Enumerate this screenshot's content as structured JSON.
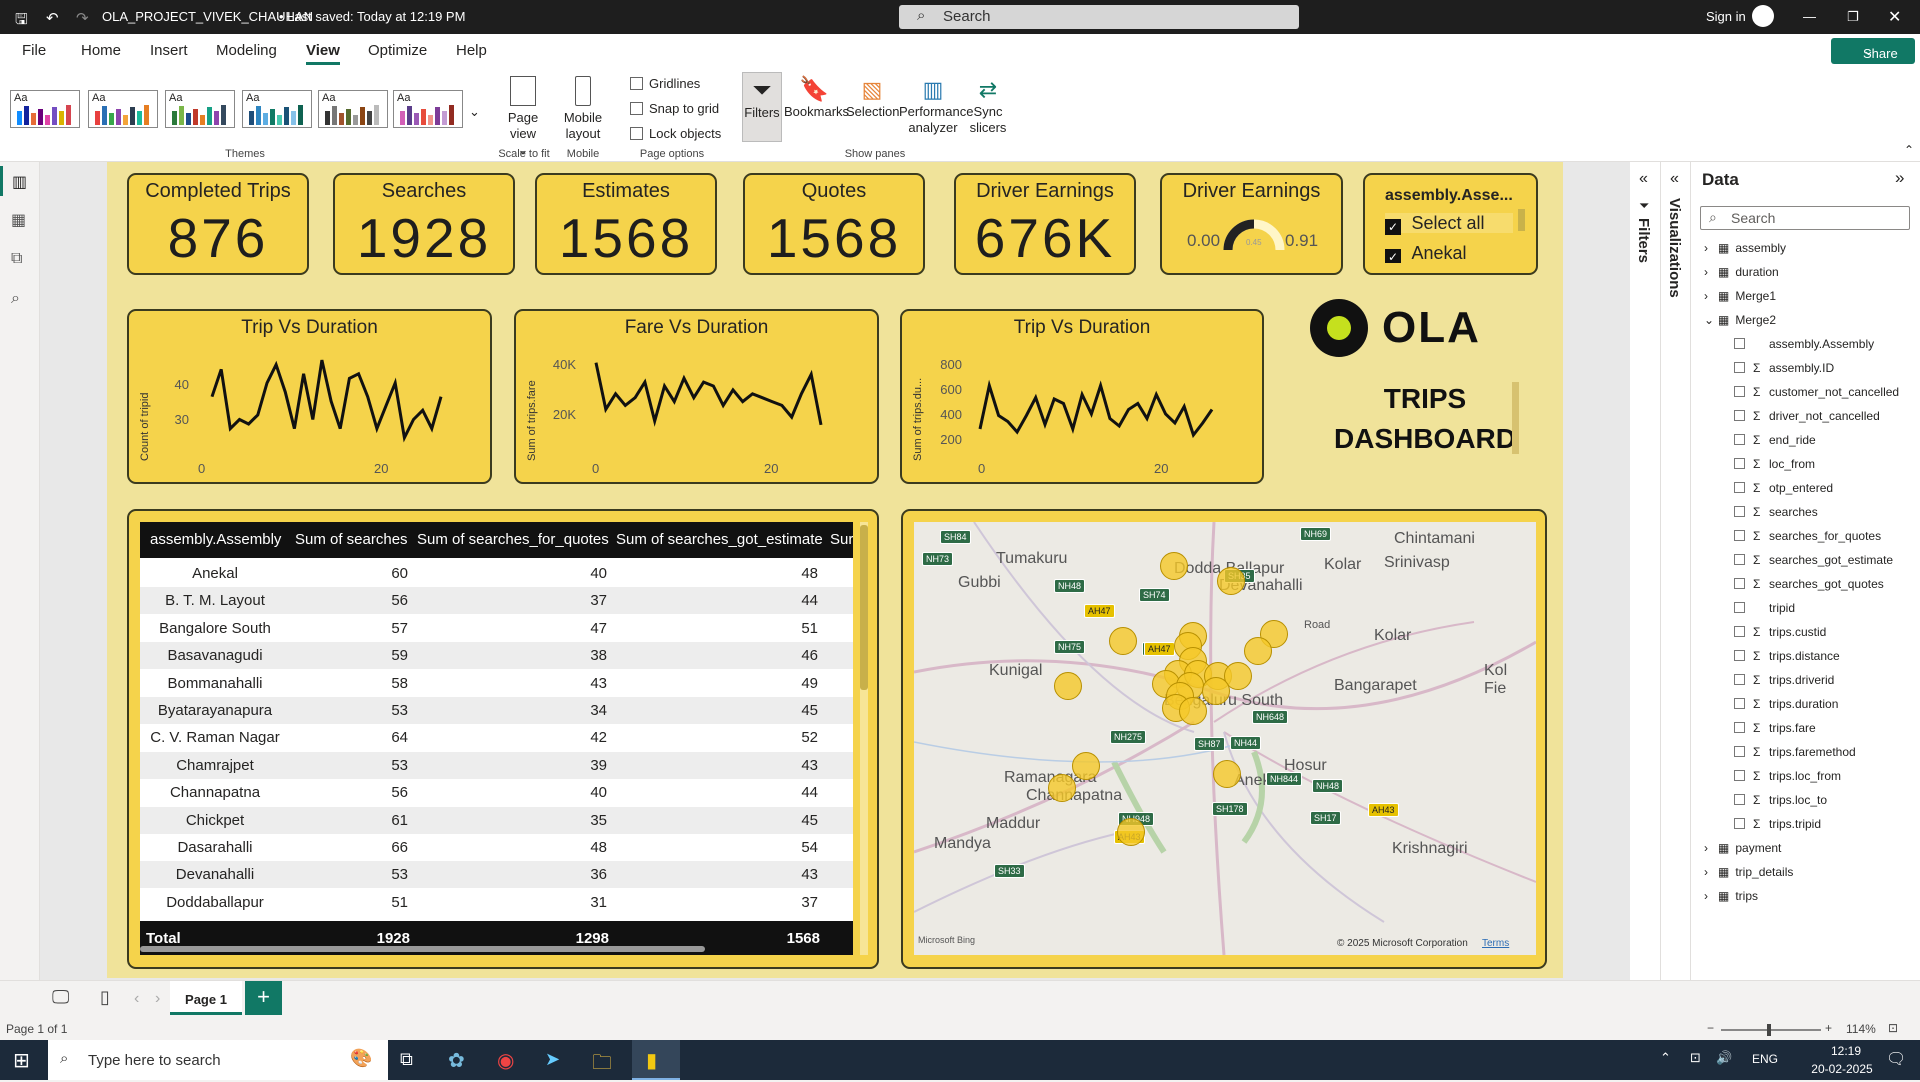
{
  "window": {
    "title": "OLA_PROJECT_VIVEK_CHAUHAN",
    "saved": "• Last saved: Today at 12:19 PM",
    "search": "Search",
    "signin": "Sign in",
    "share": "Share"
  },
  "menu": [
    "File",
    "Home",
    "Insert",
    "Modeling",
    "View",
    "Optimize",
    "Help"
  ],
  "ribbon": {
    "themes_label": "Themes",
    "theme_aa": "Aa",
    "page_view": "Page view",
    "scale_label": "Scale to fit",
    "mobile_layout": "Mobile layout",
    "mobile_label": "Mobile",
    "gridlines": "Gridlines",
    "snap": "Snap to grid",
    "lock": "Lock objects",
    "page_options": "Page options",
    "filters": "Filters",
    "bookmarks": "Bookmarks",
    "selection": "Selection",
    "perf": "Performance analyzer",
    "sync": "Sync slicers",
    "show_panes": "Show panes"
  },
  "cards": [
    {
      "title": "Completed Trips",
      "value": "876"
    },
    {
      "title": "Searches",
      "value": "1928"
    },
    {
      "title": "Estimates",
      "value": "1568"
    },
    {
      "title": "Quotes",
      "value": "1568"
    },
    {
      "title": "Driver Earnings",
      "value": "676K"
    }
  ],
  "gauge": {
    "title": "Driver Earnings",
    "min": "0.00",
    "max": "0.91",
    "mid": "0.45",
    "fraction": 0.5
  },
  "slicer": {
    "title": "assembly.Asse...",
    "items": [
      "Select all",
      "Anekal"
    ]
  },
  "charts": [
    {
      "title": "Trip Vs Duration",
      "ylabel": "Count of tripid",
      "yticks": [
        "40",
        "30"
      ],
      "xticks": [
        "0",
        "20"
      ]
    },
    {
      "title": "Fare Vs Duration",
      "ylabel": "Sum of trips.fare",
      "yticks": [
        "40K",
        "20K"
      ],
      "xticks": [
        "0",
        "20"
      ]
    },
    {
      "title": "Trip Vs Duration",
      "ylabel": "Sum of trips.du...",
      "yticks": [
        "800",
        "600",
        "400",
        "200"
      ],
      "xticks": [
        "0",
        "20"
      ]
    }
  ],
  "chart_data": [
    {
      "type": "line",
      "title": "Trip Vs Duration",
      "ylabel": "Count of tripid",
      "xlabel": "",
      "ylim": [
        25,
        48
      ],
      "x": [
        1,
        2,
        3,
        4,
        5,
        6,
        7,
        8,
        9,
        10,
        11,
        12,
        13,
        14,
        15,
        16,
        17,
        18,
        19,
        20,
        21,
        22,
        23,
        24,
        25,
        26
      ],
      "values": [
        38,
        44,
        31,
        33,
        32,
        34,
        41,
        45,
        39,
        31,
        43,
        33,
        46,
        37,
        31,
        42,
        43,
        38,
        31,
        36,
        41,
        29,
        33,
        35,
        31,
        38
      ]
    },
    {
      "type": "line",
      "title": "Fare Vs Duration",
      "ylabel": "Sum of trips.fare",
      "xlabel": "",
      "ylim": [
        15000,
        42000
      ],
      "x": [
        1,
        2,
        3,
        4,
        5,
        6,
        7,
        8,
        9,
        10,
        11,
        12,
        13,
        14,
        15,
        16,
        17,
        18,
        19,
        20,
        21,
        22,
        23,
        24
      ],
      "values": [
        39000,
        27000,
        31000,
        28000,
        30000,
        34000,
        24000,
        33000,
        29000,
        35000,
        30000,
        34000,
        33000,
        28000,
        32000,
        29000,
        31000,
        30000,
        29000,
        28000,
        25000,
        31000,
        36000,
        23000
      ]
    },
    {
      "type": "line",
      "title": "Trip Vs Duration",
      "ylabel": "Sum of trips.du...",
      "xlabel": "",
      "ylim": [
        150,
        850
      ],
      "x": [
        1,
        2,
        3,
        4,
        5,
        6,
        7,
        8,
        9,
        10,
        11,
        12,
        13,
        14,
        15,
        16,
        17,
        18,
        19,
        20,
        21,
        22,
        23,
        24,
        25,
        26
      ],
      "values": [
        330,
        620,
        420,
        380,
        310,
        420,
        540,
        360,
        530,
        500,
        330,
        560,
        430,
        620,
        400,
        350,
        460,
        500,
        400,
        560,
        430,
        370,
        480,
        290,
        370,
        460
      ]
    }
  ],
  "logo": {
    "brand": "OLA",
    "line1": "TRIPS",
    "line2": "DASHBOARD"
  },
  "table": {
    "headers": [
      "assembly.Assembly",
      "Sum of searches",
      "Sum of searches_for_quotes",
      "Sum of searches_got_estimate",
      "Sur"
    ],
    "rows": [
      [
        "Anekal",
        "60",
        "40",
        "48"
      ],
      [
        "B. T. M. Layout",
        "56",
        "37",
        "44"
      ],
      [
        "Bangalore South",
        "57",
        "47",
        "51"
      ],
      [
        "Basavanagudi",
        "59",
        "38",
        "46"
      ],
      [
        "Bommanahalli",
        "58",
        "43",
        "49"
      ],
      [
        "Byatarayanapura",
        "53",
        "34",
        "45"
      ],
      [
        "C. V. Raman Nagar",
        "64",
        "42",
        "52"
      ],
      [
        "Chamrajpet",
        "53",
        "39",
        "43"
      ],
      [
        "Channapatna",
        "56",
        "40",
        "44"
      ],
      [
        "Chickpet",
        "61",
        "35",
        "45"
      ],
      [
        "Dasarahalli",
        "66",
        "48",
        "54"
      ],
      [
        "Devanahalli",
        "53",
        "36",
        "43"
      ],
      [
        "Doddaballapur",
        "51",
        "31",
        "37"
      ]
    ],
    "total": [
      "Total",
      "1928",
      "1298",
      "1568"
    ]
  },
  "map": {
    "labels": [
      "Tumakuru",
      "Gubbi",
      "Dodda Ballapur",
      "Devanahalli",
      "Chintamani",
      "Kolar",
      "Srinivasp",
      "Kolar",
      "Bangarapet",
      "Kunigal",
      "Ramanagara",
      "Channapatna",
      "Bengaluru South",
      "Anekal",
      "Hosur",
      "Maddur",
      "Mandya",
      "Krishnagiri",
      "Kol Fie",
      "Road"
    ],
    "highways": [
      "SH84",
      "NH73",
      "NH48",
      "AH47",
      "SH74",
      "SH35",
      "NH69",
      "NH75",
      "NH275",
      "NH48",
      "SH87",
      "NH44",
      "NH648",
      "NH844",
      "NH48",
      "SH178",
      "SH17",
      "AH43",
      "NH948",
      "AH43",
      "SH33",
      "AH47"
    ],
    "copyright": "© 2025 Microsoft Corporation",
    "terms": "Terms",
    "bing": "Microsoft Bing"
  },
  "panes": {
    "filters": "Filters",
    "visualizations": "Visualizations",
    "data_title": "Data",
    "search": "Search",
    "tree": [
      {
        "label": "assembly",
        "kind": "table"
      },
      {
        "label": "duration",
        "kind": "table"
      },
      {
        "label": "Merge1",
        "kind": "table"
      },
      {
        "label": "Merge2",
        "kind": "table-open"
      },
      {
        "label": "assembly.Assembly",
        "kind": "field"
      },
      {
        "label": "assembly.ID",
        "kind": "sum"
      },
      {
        "label": "customer_not_cancelled",
        "kind": "sum"
      },
      {
        "label": "driver_not_cancelled",
        "kind": "sum"
      },
      {
        "label": "end_ride",
        "kind": "sum"
      },
      {
        "label": "loc_from",
        "kind": "sum"
      },
      {
        "label": "otp_entered",
        "kind": "sum"
      },
      {
        "label": "searches",
        "kind": "sum"
      },
      {
        "label": "searches_for_quotes",
        "kind": "sum"
      },
      {
        "label": "searches_got_estimate",
        "kind": "sum"
      },
      {
        "label": "searches_got_quotes",
        "kind": "sum"
      },
      {
        "label": "tripid",
        "kind": "field"
      },
      {
        "label": "trips.custid",
        "kind": "sum"
      },
      {
        "label": "trips.distance",
        "kind": "sum"
      },
      {
        "label": "trips.driverid",
        "kind": "sum"
      },
      {
        "label": "trips.duration",
        "kind": "sum"
      },
      {
        "label": "trips.fare",
        "kind": "sum"
      },
      {
        "label": "trips.faremethod",
        "kind": "sum"
      },
      {
        "label": "trips.loc_from",
        "kind": "sum"
      },
      {
        "label": "trips.loc_to",
        "kind": "sum"
      },
      {
        "label": "trips.tripid",
        "kind": "sum"
      },
      {
        "label": "payment",
        "kind": "table"
      },
      {
        "label": "trip_details",
        "kind": "table"
      },
      {
        "label": "trips",
        "kind": "table"
      }
    ]
  },
  "pages": {
    "tab": "Page 1",
    "add": "+"
  },
  "status": {
    "page": "Page 1 of 1",
    "zoom": "114%"
  },
  "taskbar": {
    "search": "Type here to search",
    "lang": "ENG",
    "time": "12:19",
    "date": "20-02-2025"
  },
  "colors": {
    "accent_yellow": "#f5d34b",
    "report_bg": "#f0e39a",
    "share_green": "#117865"
  }
}
